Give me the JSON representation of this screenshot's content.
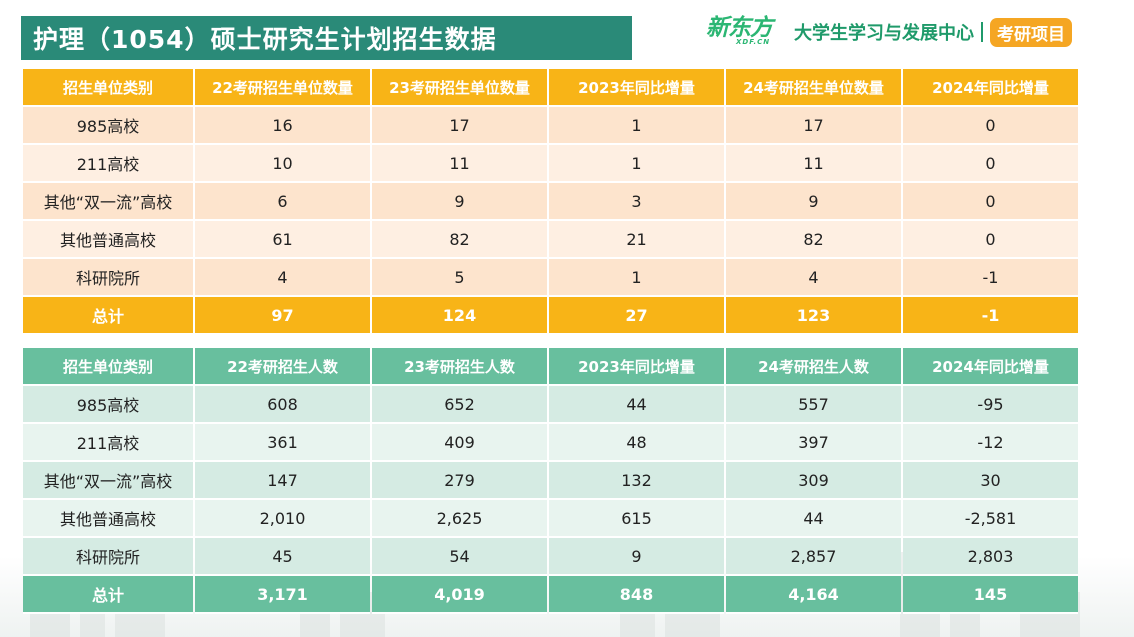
{
  "title": "护理（1054）硕士研究生计划招生数据",
  "brand": {
    "logo_main": "新东方",
    "logo_sub": "XDF.CN",
    "center": "大学生学习与发展中心",
    "project": "考研项目"
  },
  "table1": {
    "headers": [
      "招生单位类别",
      "22考研招生单位数量",
      "23考研招生单位数量",
      "2023年同比增量",
      "24考研招生单位数量",
      "2024年同比增量"
    ],
    "rows": [
      [
        "985高校",
        "16",
        "17",
        "1",
        "17",
        "0"
      ],
      [
        "211高校",
        "10",
        "11",
        "1",
        "11",
        "0"
      ],
      [
        "其他“双一流”高校",
        "6",
        "9",
        "3",
        "9",
        "0"
      ],
      [
        "其他普通高校",
        "61",
        "82",
        "21",
        "82",
        "0"
      ],
      [
        "科研院所",
        "4",
        "5",
        "1",
        "4",
        "-1"
      ]
    ],
    "total": [
      "总计",
      "97",
      "124",
      "27",
      "123",
      "-1"
    ]
  },
  "table2": {
    "headers": [
      "招生单位类别",
      "22考研招生人数",
      "23考研招生人数",
      "2023年同比增量",
      "24考研招生人数",
      "2024年同比增量"
    ],
    "rows": [
      [
        "985高校",
        "608",
        "652",
        "44",
        "557",
        "-95"
      ],
      [
        "211高校",
        "361",
        "409",
        "48",
        "397",
        "-12"
      ],
      [
        "其他“双一流”高校",
        "147",
        "279",
        "132",
        "309",
        "30"
      ],
      [
        "其他普通高校",
        "2,010",
        "2,625",
        "615",
        "44",
        "-2,581"
      ],
      [
        "科研院所",
        "45",
        "54",
        "9",
        "2,857",
        "2,803"
      ]
    ],
    "total": [
      "总计",
      "3,171",
      "4,019",
      "848",
      "4,164",
      "145"
    ]
  }
}
